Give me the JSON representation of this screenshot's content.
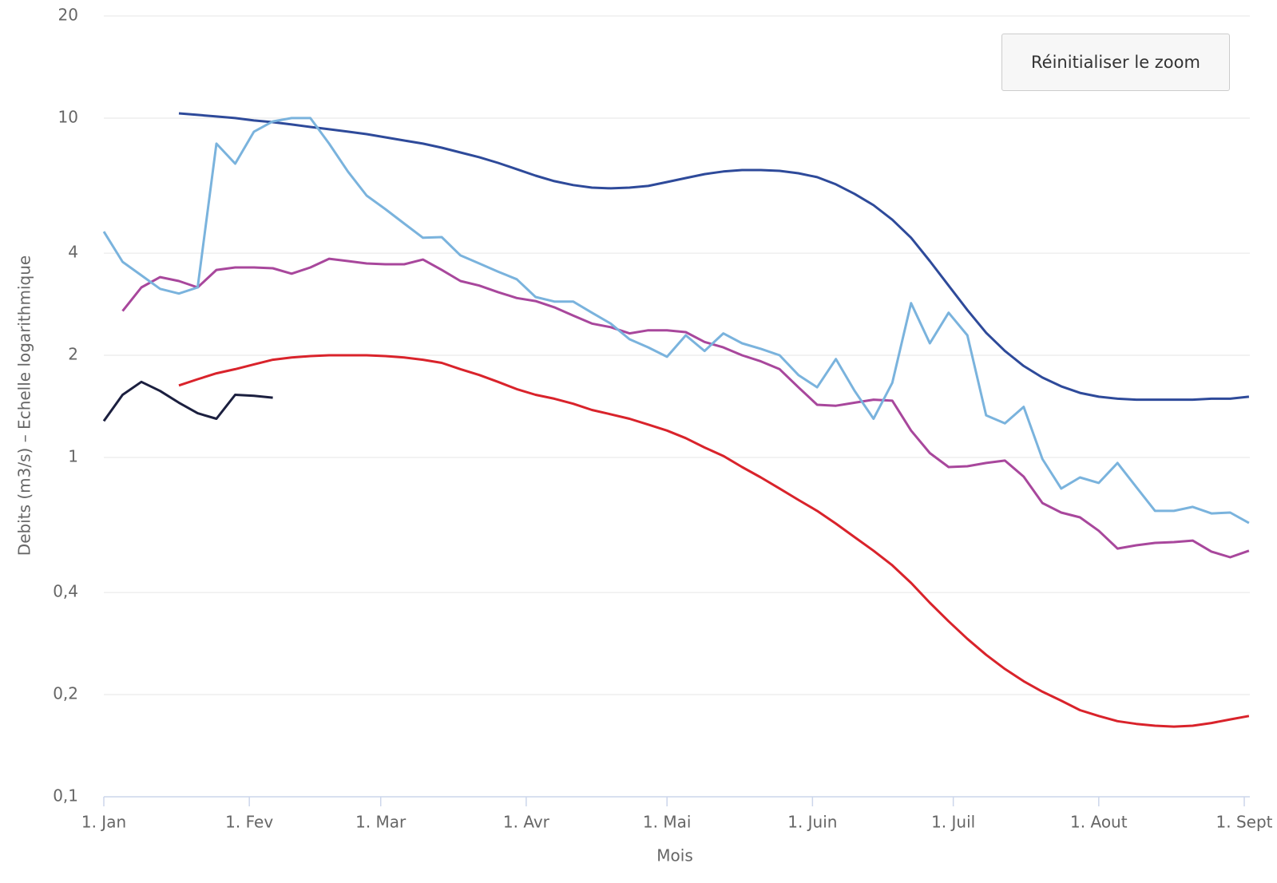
{
  "chart_data": {
    "type": "line",
    "yscale": "log",
    "grid": true,
    "ylabel": "Debits (m3/s) – Echelle logarithmique",
    "xlabel": "Mois",
    "button": "Réinitialiser le zoom",
    "xlim": [
      0,
      243
    ],
    "xticks": [
      {
        "value": 0,
        "label": "1. Jan"
      },
      {
        "value": 31,
        "label": "1. Fev"
      },
      {
        "value": 59,
        "label": "1. Mar"
      },
      {
        "value": 90,
        "label": "1. Avr"
      },
      {
        "value": 120,
        "label": "1. Mai"
      },
      {
        "value": 151,
        "label": "1. Juin"
      },
      {
        "value": 181,
        "label": "1. Juil"
      },
      {
        "value": 212,
        "label": "1. Aout"
      },
      {
        "value": 243,
        "label": "1. Sept"
      }
    ],
    "ylim": [
      0.1,
      20
    ],
    "yticks": [
      {
        "value": 0.1,
        "label": "0,1"
      },
      {
        "value": 0.2,
        "label": "0,2"
      },
      {
        "value": 0.4,
        "label": "0,4"
      },
      1,
      2,
      4,
      10,
      20
    ],
    "x": [
      0,
      4,
      8,
      12,
      16,
      20,
      24,
      28,
      32,
      36,
      40,
      44,
      48,
      52,
      56,
      60,
      64,
      68,
      72,
      76,
      80,
      84,
      88,
      92,
      96,
      100,
      104,
      108,
      112,
      116,
      120,
      124,
      128,
      132,
      136,
      140,
      144,
      148,
      152,
      156,
      160,
      164,
      168,
      172,
      176,
      180,
      184,
      188,
      192,
      196,
      200,
      204,
      208,
      212,
      216,
      220,
      224,
      228,
      232,
      236,
      240,
      244
    ],
    "series": [
      {
        "color": "#2e4a9a",
        "values": [
          null,
          null,
          null,
          null,
          10.33,
          10.22,
          10.11,
          10.0,
          9.84,
          9.73,
          9.58,
          9.42,
          9.27,
          9.12,
          8.97,
          8.78,
          8.59,
          8.41,
          8.18,
          7.92,
          7.67,
          7.38,
          7.07,
          6.77,
          6.52,
          6.35,
          6.24,
          6.21,
          6.24,
          6.31,
          6.48,
          6.66,
          6.84,
          6.96,
          7.03,
          7.03,
          6.99,
          6.88,
          6.7,
          6.38,
          5.98,
          5.54,
          5.02,
          4.44,
          3.79,
          3.21,
          2.72,
          2.33,
          2.06,
          1.86,
          1.72,
          1.62,
          1.55,
          1.51,
          1.49,
          1.48,
          1.48,
          1.48,
          1.48,
          1.49,
          1.49,
          1.51
        ]
      },
      {
        "color": "#d9232b",
        "values": [
          null,
          null,
          null,
          null,
          1.63,
          1.7,
          1.77,
          1.82,
          1.88,
          1.94,
          1.97,
          1.99,
          2.0,
          2.0,
          2.0,
          1.99,
          1.97,
          1.94,
          1.9,
          1.82,
          1.75,
          1.67,
          1.59,
          1.53,
          1.49,
          1.44,
          1.38,
          1.34,
          1.3,
          1.25,
          1.2,
          1.14,
          1.07,
          1.01,
          0.937,
          0.873,
          0.81,
          0.75,
          0.696,
          0.638,
          0.582,
          0.531,
          0.481,
          0.427,
          0.373,
          0.329,
          0.292,
          0.262,
          0.238,
          0.219,
          0.204,
          0.192,
          0.18,
          0.173,
          0.167,
          0.164,
          0.162,
          0.161,
          0.162,
          0.165,
          0.169,
          0.173
        ]
      },
      {
        "color": "#a8479c",
        "values": [
          null,
          2.7,
          3.17,
          3.4,
          3.31,
          3.17,
          3.57,
          3.63,
          3.63,
          3.61,
          3.48,
          3.63,
          3.85,
          3.79,
          3.73,
          3.71,
          3.71,
          3.83,
          3.57,
          3.31,
          3.21,
          3.07,
          2.95,
          2.89,
          2.77,
          2.62,
          2.48,
          2.42,
          2.32,
          2.37,
          2.37,
          2.34,
          2.19,
          2.11,
          2.0,
          1.92,
          1.82,
          1.61,
          1.43,
          1.42,
          1.45,
          1.48,
          1.47,
          1.2,
          1.03,
          0.937,
          0.942,
          0.963,
          0.979,
          0.878,
          0.734,
          0.688,
          0.666,
          0.608,
          0.539,
          0.551,
          0.56,
          0.563,
          0.569,
          0.528,
          0.508,
          0.531
        ]
      },
      {
        "color": "#7ab3dd",
        "values": [
          4.63,
          3.77,
          3.44,
          3.14,
          3.04,
          3.17,
          8.41,
          7.34,
          9.12,
          9.78,
          10.0,
          10.0,
          8.41,
          6.96,
          5.91,
          5.39,
          4.89,
          4.44,
          4.46,
          3.94,
          3.73,
          3.53,
          3.35,
          2.97,
          2.88,
          2.88,
          2.67,
          2.48,
          2.23,
          2.11,
          1.98,
          2.29,
          2.06,
          2.32,
          2.17,
          2.09,
          2.0,
          1.75,
          1.61,
          1.95,
          1.57,
          1.3,
          1.66,
          2.85,
          2.17,
          2.67,
          2.29,
          1.33,
          1.26,
          1.41,
          0.989,
          0.81,
          0.873,
          0.841,
          0.963,
          0.818,
          0.696,
          0.696,
          0.715,
          0.684,
          0.688,
          0.641
        ]
      },
      {
        "color": "#1b1f3f",
        "values": [
          1.28,
          1.53,
          1.67,
          1.57,
          1.45,
          1.35,
          1.3,
          1.53,
          1.52,
          1.5,
          null,
          null,
          null,
          null,
          null,
          null,
          null,
          null,
          null,
          null,
          null,
          null,
          null,
          null,
          null,
          null,
          null,
          null,
          null,
          null,
          null,
          null,
          null,
          null,
          null,
          null,
          null,
          null,
          null,
          null,
          null,
          null,
          null,
          null,
          null,
          null,
          null,
          null,
          null,
          null,
          null,
          null,
          null,
          null,
          null,
          null,
          null,
          null,
          null,
          null,
          null,
          null
        ]
      }
    ]
  }
}
